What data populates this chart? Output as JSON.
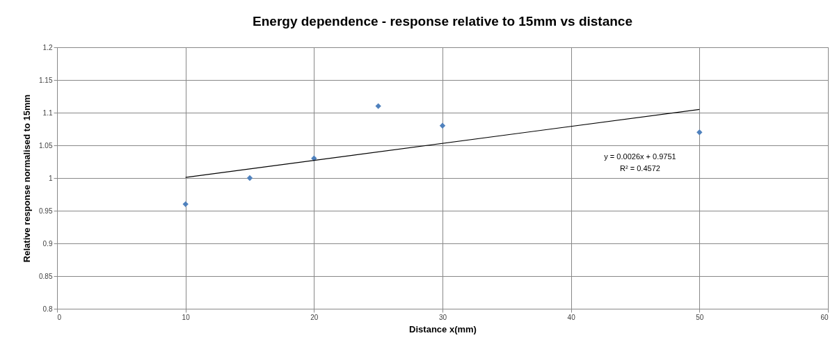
{
  "chart_data": {
    "type": "scatter",
    "title": "Energy dependence - response relative to 15mm vs distance",
    "xlabel": "Distance x(mm)",
    "ylabel": "Relative response normalised to 15mm",
    "x": [
      10,
      15,
      20,
      25,
      30,
      50
    ],
    "series": [
      {
        "color": "#4f81bd",
        "marker": "diamond",
        "values": [
          0.96,
          1.0,
          1.03,
          1.11,
          1.08,
          1.07
        ]
      },
      {
        "type": "line",
        "color": "#000000",
        "x": [
          10,
          50
        ],
        "values": [
          1.001,
          1.105
        ]
      }
    ],
    "xlim": [
      0,
      60
    ],
    "xticks": [
      0,
      10,
      20,
      30,
      40,
      50,
      60
    ],
    "ylim": [
      0.8,
      1.2
    ],
    "yticks": [
      0.8,
      0.85,
      0.9,
      0.95,
      1,
      1.05,
      1.1,
      1.15,
      1.2
    ],
    "grid": true,
    "annotations": [
      "y = 0.0026x + 0.9751",
      "R² = 0.4572"
    ]
  }
}
